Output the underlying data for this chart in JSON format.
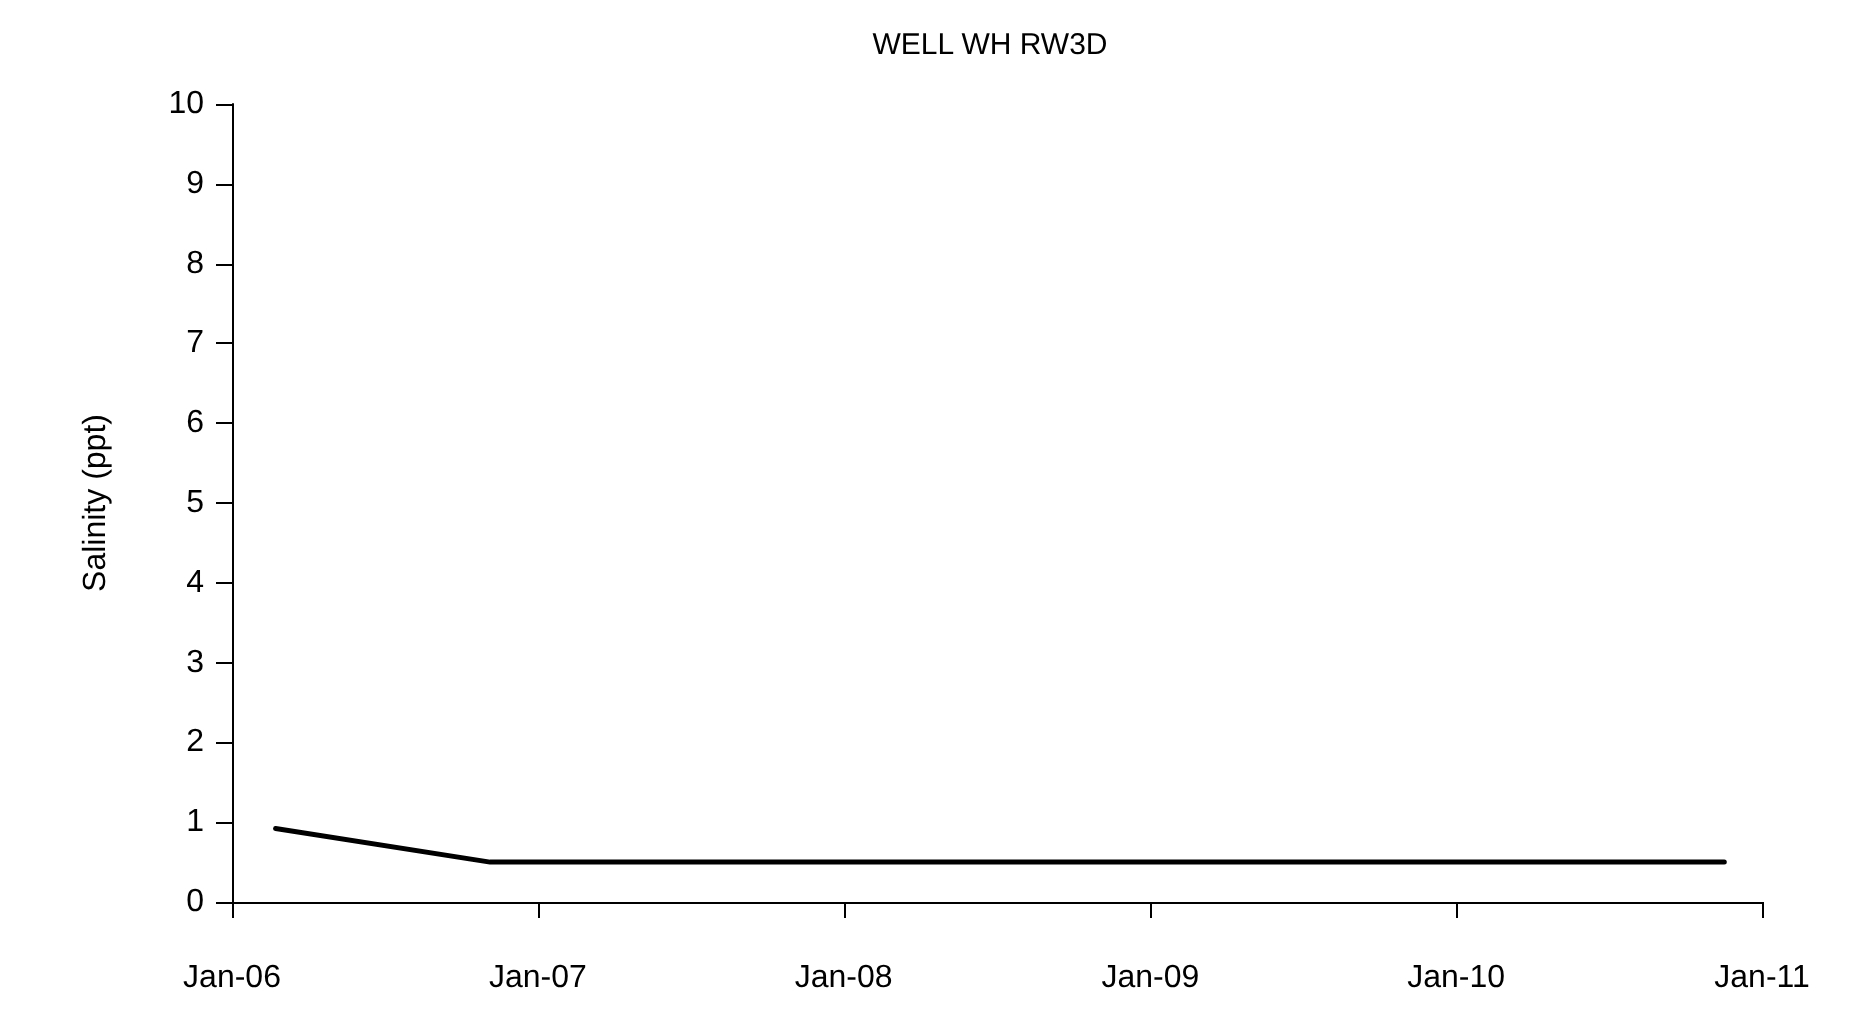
{
  "chart_data": {
    "type": "line",
    "title": "WELL WH RW3D",
    "ylabel": "Salinity (ppt)",
    "x": [
      "2006-02-22",
      "2006-11-05",
      "2010-11-17"
    ],
    "series": [
      {
        "color": "#000000",
        "values": [
          0.92,
          0.5,
          0.5
        ]
      }
    ],
    "xlim": [
      "2006-01-01",
      "2011-01-01"
    ],
    "xticks": [
      {
        "value": "2006-01-01",
        "label": "Jan-06"
      },
      {
        "value": "2007-01-01",
        "label": "Jan-07"
      },
      {
        "value": "2008-01-01",
        "label": "Jan-08"
      },
      {
        "value": "2009-01-01",
        "label": "Jan-09"
      },
      {
        "value": "2010-01-01",
        "label": "Jan-10"
      },
      {
        "value": "2011-01-01",
        "label": "Jan-11"
      }
    ],
    "ylim": [
      0,
      10
    ],
    "yticks": [
      0,
      1,
      2,
      3,
      4,
      5,
      6,
      7,
      8,
      9,
      10
    ],
    "marker": "none",
    "line_style": "solid"
  }
}
